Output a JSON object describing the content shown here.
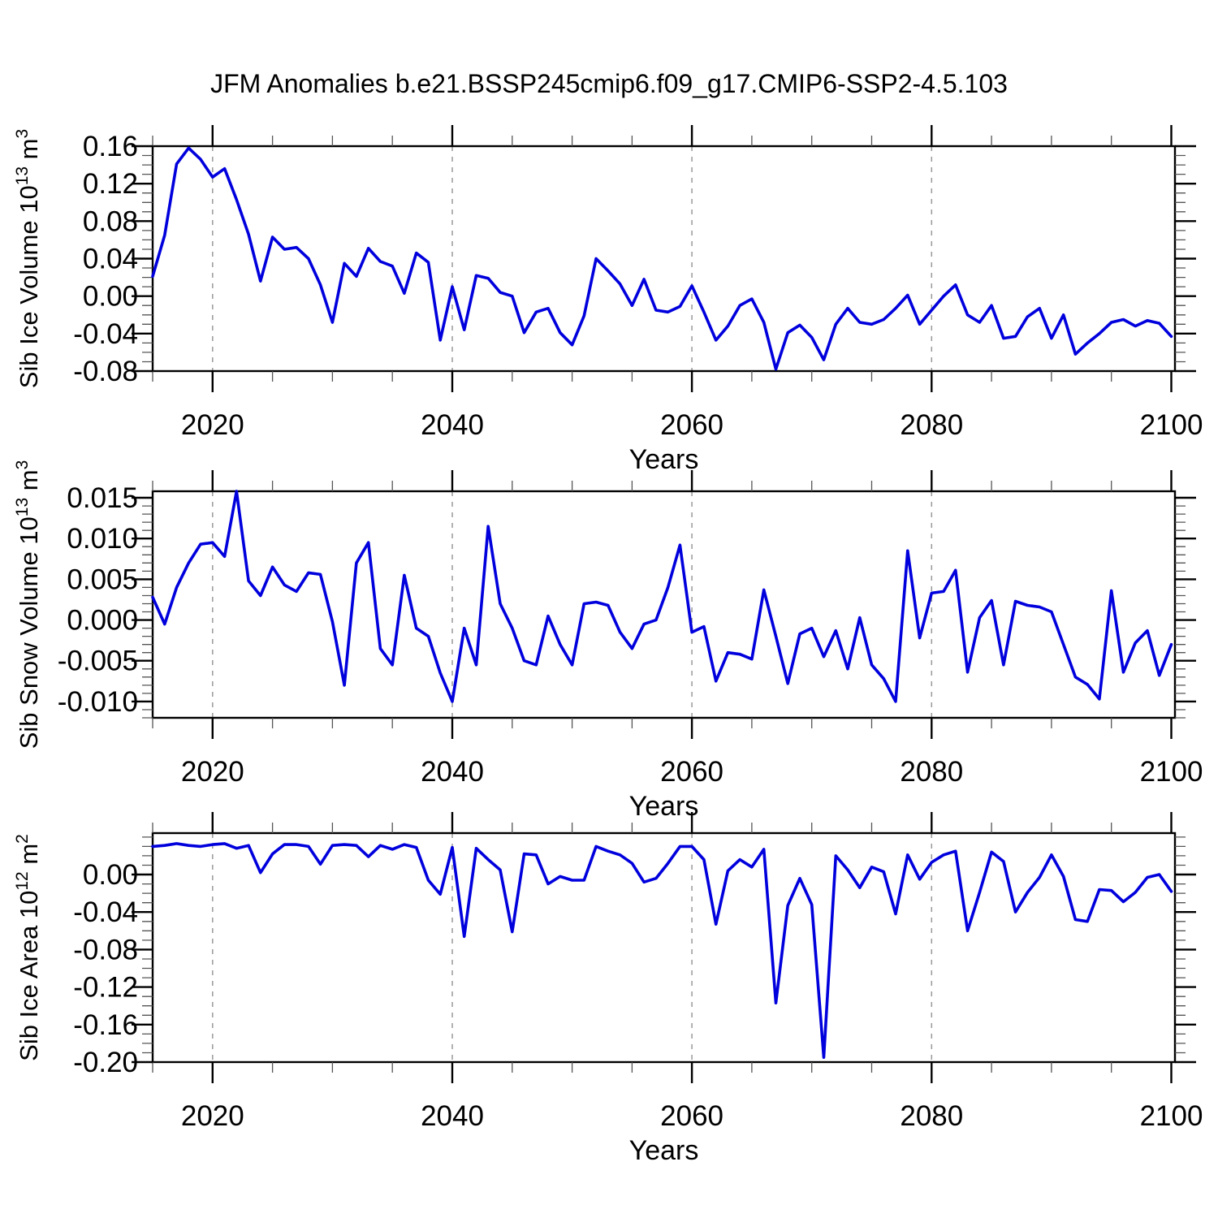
{
  "title": "JFM Anomalies b.e21.BSSP245cmip6.f09_g17.CMIP6-SSP2-4.5.103",
  "line_color": "#0000dd",
  "years": [
    2015,
    2016,
    2017,
    2018,
    2019,
    2020,
    2021,
    2022,
    2023,
    2024,
    2025,
    2026,
    2027,
    2028,
    2029,
    2030,
    2031,
    2032,
    2033,
    2034,
    2035,
    2036,
    2037,
    2038,
    2039,
    2040,
    2041,
    2042,
    2043,
    2044,
    2045,
    2046,
    2047,
    2048,
    2049,
    2050,
    2051,
    2052,
    2053,
    2054,
    2055,
    2056,
    2057,
    2058,
    2059,
    2060,
    2061,
    2062,
    2063,
    2064,
    2065,
    2066,
    2067,
    2068,
    2069,
    2070,
    2071,
    2072,
    2073,
    2074,
    2075,
    2076,
    2077,
    2078,
    2079,
    2080,
    2081,
    2082,
    2083,
    2084,
    2085,
    2086,
    2087,
    2088,
    2089,
    2090,
    2091,
    2092,
    2093,
    2094,
    2095,
    2096,
    2097,
    2098,
    2099,
    2100
  ],
  "chart_data": [
    {
      "type": "line",
      "name": "sib-ice-volume",
      "ylabel": "Sib Ice Volume 10^13 m^3",
      "ylabel_parts": [
        {
          "text": "Sib Ice Volume 10"
        },
        {
          "text": "13",
          "sup": true
        },
        {
          "text": " m"
        },
        {
          "text": "3",
          "sup": true
        }
      ],
      "xlabel": "Years",
      "color": "#0000dd",
      "ylim": [
        -0.08,
        0.16
      ],
      "yticks": [
        0.16,
        0.12,
        0.08,
        0.04,
        0.0,
        -0.04,
        -0.08
      ],
      "ytick_labels": [
        "0.16",
        "0.12",
        "0.08",
        "0.04",
        "0.00",
        "-0.04",
        "-0.08"
      ],
      "yminor": 0.01,
      "xticks": [
        2020,
        2040,
        2060,
        2080,
        2100
      ],
      "xtick_labels": [
        "2020",
        "2040",
        "2060",
        "2080",
        "2100"
      ],
      "xminor": 5,
      "grid_years": [
        2020,
        2040,
        2060,
        2080
      ],
      "values": [
        0.021,
        0.065,
        0.141,
        0.158,
        0.146,
        0.127,
        0.136,
        0.103,
        0.066,
        0.016,
        0.063,
        0.05,
        0.052,
        0.04,
        0.012,
        -0.028,
        0.035,
        0.021,
        0.051,
        0.037,
        0.032,
        0.003,
        0.046,
        0.036,
        -0.047,
        0.01,
        -0.036,
        0.022,
        0.019,
        0.004,
        0.0,
        -0.039,
        -0.017,
        -0.013,
        -0.039,
        -0.052,
        -0.021,
        0.04,
        0.027,
        0.013,
        -0.01,
        0.018,
        -0.015,
        -0.017,
        -0.011,
        0.011,
        -0.017,
        -0.047,
        -0.032,
        -0.01,
        -0.003,
        -0.028,
        -0.078,
        -0.039,
        -0.031,
        -0.044,
        -0.068,
        -0.03,
        -0.013,
        -0.028,
        -0.03,
        -0.025,
        -0.013,
        0.001,
        -0.03,
        -0.015,
        0.0,
        0.012,
        -0.02,
        -0.028,
        -0.01,
        -0.045,
        -0.043,
        -0.022,
        -0.013,
        -0.045,
        -0.02,
        -0.062,
        -0.05,
        -0.04,
        -0.028,
        -0.025,
        -0.032,
        -0.026,
        -0.029,
        -0.043
      ]
    },
    {
      "type": "line",
      "name": "sib-snow-volume",
      "ylabel": "Sib Snow Volume 10^13 m^3",
      "ylabel_parts": [
        {
          "text": "Sib Snow Volume 10"
        },
        {
          "text": "13",
          "sup": true
        },
        {
          "text": " m"
        },
        {
          "text": "3",
          "sup": true
        }
      ],
      "xlabel": "Years",
      "color": "#0000dd",
      "ylim": [
        -0.012,
        0.0158
      ],
      "yticks": [
        0.015,
        0.01,
        0.005,
        0.0,
        -0.005,
        -0.01
      ],
      "ytick_labels": [
        "0.015",
        "0.010",
        "0.005",
        "0.000",
        "-0.005",
        "-0.010"
      ],
      "yminor": 0.001,
      "xticks": [
        2020,
        2040,
        2060,
        2080,
        2100
      ],
      "xtick_labels": [
        "2020",
        "2040",
        "2060",
        "2080",
        "2100"
      ],
      "xminor": 5,
      "grid_years": [
        2020,
        2040,
        2060,
        2080
      ],
      "values": [
        0.0028,
        -0.0005,
        0.004,
        0.007,
        0.0093,
        0.0095,
        0.0078,
        0.0158,
        0.0048,
        0.003,
        0.0065,
        0.0043,
        0.0035,
        0.0058,
        0.0056,
        -0.0002,
        -0.008,
        0.007,
        0.0095,
        -0.0035,
        -0.0055,
        0.0055,
        -0.001,
        -0.002,
        -0.0065,
        -0.01,
        -0.001,
        -0.0055,
        0.0115,
        0.002,
        -0.001,
        -0.005,
        -0.0055,
        0.0005,
        -0.003,
        -0.0055,
        0.002,
        0.0022,
        0.0018,
        -0.0015,
        -0.0035,
        -0.0005,
        0.0,
        0.004,
        0.0092,
        -0.0015,
        -0.0008,
        -0.0075,
        -0.004,
        -0.0042,
        -0.0048,
        0.0037,
        -0.002,
        -0.0078,
        -0.0017,
        -0.001,
        -0.0045,
        -0.0013,
        -0.006,
        0.0003,
        -0.0055,
        -0.0072,
        -0.01,
        0.0085,
        -0.0022,
        0.0033,
        0.0035,
        0.0061,
        -0.0064,
        0.0003,
        0.0024,
        -0.0055,
        0.0023,
        0.0018,
        0.0016,
        0.001,
        -0.003,
        -0.007,
        -0.0079,
        -0.0097,
        0.0036,
        -0.0064,
        -0.0028,
        -0.0013,
        -0.0068,
        -0.003
      ]
    },
    {
      "type": "line",
      "name": "sib-ice-area",
      "ylabel": "Sib Ice Area 10^12 m^2",
      "ylabel_parts": [
        {
          "text": "Sib Ice Area 10"
        },
        {
          "text": "12",
          "sup": true
        },
        {
          "text": " m"
        },
        {
          "text": "2",
          "sup": true
        }
      ],
      "xlabel": "Years",
      "color": "#0000dd",
      "ylim": [
        -0.2,
        0.0442
      ],
      "yticks": [
        0.0,
        -0.04,
        -0.08,
        -0.12,
        -0.16,
        -0.2
      ],
      "ytick_labels": [
        "0.00",
        "-0.04",
        "-0.08",
        "-0.12",
        "-0.16",
        "-0.20"
      ],
      "yminor": 0.01,
      "xticks": [
        2020,
        2040,
        2060,
        2080,
        2100
      ],
      "xtick_labels": [
        "2020",
        "2040",
        "2060",
        "2080",
        "2100"
      ],
      "xminor": 5,
      "grid_years": [
        2020,
        2040,
        2060,
        2080
      ],
      "values": [
        0.03,
        0.031,
        0.033,
        0.031,
        0.03,
        0.032,
        0.033,
        0.028,
        0.031,
        0.002,
        0.022,
        0.032,
        0.032,
        0.03,
        0.011,
        0.031,
        0.032,
        0.031,
        0.019,
        0.031,
        0.027,
        0.032,
        0.029,
        -0.006,
        -0.021,
        0.029,
        -0.066,
        0.028,
        0.016,
        0.005,
        -0.061,
        0.022,
        0.021,
        -0.01,
        -0.002,
        -0.006,
        -0.006,
        0.03,
        0.025,
        0.021,
        0.012,
        -0.008,
        -0.004,
        0.012,
        0.03,
        0.03,
        0.016,
        -0.053,
        0.004,
        0.016,
        0.008,
        0.027,
        -0.137,
        -0.033,
        -0.004,
        -0.032,
        -0.195,
        0.02,
        0.005,
        -0.014,
        0.008,
        0.003,
        -0.042,
        0.021,
        -0.005,
        0.013,
        0.021,
        0.025,
        -0.06,
        -0.019,
        0.024,
        0.014,
        -0.04,
        -0.019,
        -0.003,
        0.021,
        -0.002,
        -0.048,
        -0.05,
        -0.016,
        -0.017,
        -0.029,
        -0.019,
        -0.003,
        0.0,
        -0.018
      ]
    }
  ]
}
